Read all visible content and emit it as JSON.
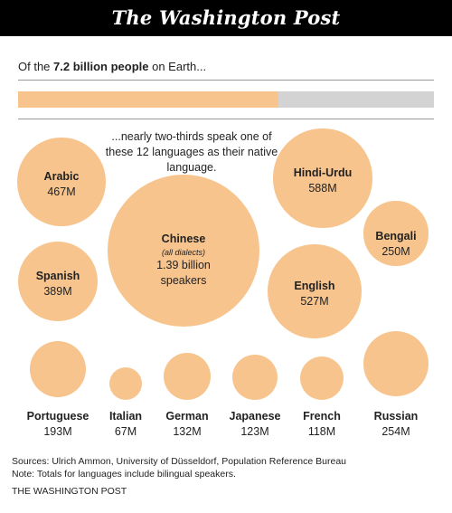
{
  "masthead": {
    "title": "The Washington Post"
  },
  "intro": {
    "prefix": "Of the ",
    "highlight": "7.2 billion people",
    "suffix": " on Earth..."
  },
  "share_bar": {
    "fraction": 0.625,
    "fill_color": "#f7c48e",
    "track_color": "#d3d3d3"
  },
  "caption": {
    "text": "...nearly two-thirds speak one of these 12 languages as their native language."
  },
  "languages": [
    {
      "key": "chinese",
      "name": "Chinese",
      "note": "(all dialects)",
      "value": "1.39 billion speakers",
      "speakers_millions": 1390
    },
    {
      "key": "hindi-urdu",
      "name": "Hindi-Urdu",
      "value": "588M",
      "speakers_millions": 588
    },
    {
      "key": "english",
      "name": "English",
      "value": "527M",
      "speakers_millions": 527
    },
    {
      "key": "arabic",
      "name": "Arabic",
      "value": "467M",
      "speakers_millions": 467
    },
    {
      "key": "spanish",
      "name": "Spanish",
      "value": "389M",
      "speakers_millions": 389
    },
    {
      "key": "russian",
      "name": "Russian",
      "value": "254M",
      "speakers_millions": 254
    },
    {
      "key": "bengali",
      "name": "Bengali",
      "value": "250M",
      "speakers_millions": 250
    },
    {
      "key": "portuguese",
      "name": "Portuguese",
      "value": "193M",
      "speakers_millions": 193
    },
    {
      "key": "german",
      "name": "German",
      "value": "132M",
      "speakers_millions": 132
    },
    {
      "key": "japanese",
      "name": "Japanese",
      "value": "123M",
      "speakers_millions": 123
    },
    {
      "key": "french",
      "name": "French",
      "value": "118M",
      "speakers_millions": 118
    },
    {
      "key": "italian",
      "name": "Italian",
      "value": "67M",
      "speakers_millions": 67
    }
  ],
  "bubble_color": "#f7c48e",
  "footer": {
    "sources": "Sources: Ulrich Ammon, University of Düsseldorf, Population Reference Bureau",
    "note": "Note: Totals for languages include bilingual speakers.",
    "brand": "THE WASHINGTON POST"
  }
}
